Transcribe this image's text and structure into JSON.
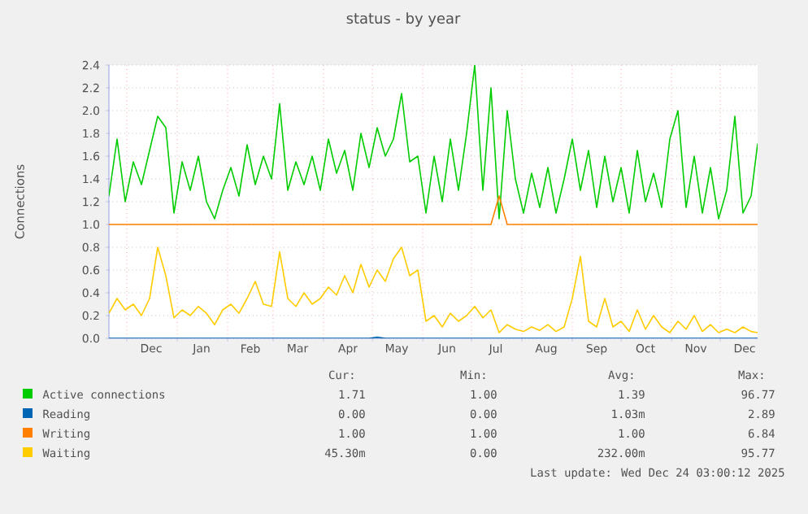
{
  "chart_data": {
    "type": "line",
    "title": "status - by year",
    "ylabel": "Connections",
    "x": [
      "2024-11-20",
      "2024-11-25",
      "2024-11-30",
      "2024-12-05",
      "2024-12-10",
      "2024-12-15",
      "2024-12-20",
      "2024-12-25",
      "2024-12-30",
      "2025-01-04",
      "2025-01-09",
      "2025-01-14",
      "2025-01-19",
      "2025-01-24",
      "2025-01-29",
      "2025-02-03",
      "2025-02-08",
      "2025-02-13",
      "2025-02-18",
      "2025-02-23",
      "2025-02-28",
      "2025-03-05",
      "2025-03-10",
      "2025-03-15",
      "2025-03-20",
      "2025-03-25",
      "2025-03-30",
      "2025-04-04",
      "2025-04-09",
      "2025-04-14",
      "2025-04-19",
      "2025-04-24",
      "2025-04-29",
      "2025-05-04",
      "2025-05-09",
      "2025-05-14",
      "2025-05-19",
      "2025-05-24",
      "2025-05-29",
      "2025-06-03",
      "2025-06-08",
      "2025-06-13",
      "2025-06-18",
      "2025-06-23",
      "2025-06-28",
      "2025-07-03",
      "2025-07-08",
      "2025-07-13",
      "2025-07-18",
      "2025-07-23",
      "2025-07-28",
      "2025-08-02",
      "2025-08-07",
      "2025-08-12",
      "2025-08-17",
      "2025-08-22",
      "2025-08-27",
      "2025-09-01",
      "2025-09-06",
      "2025-09-11",
      "2025-09-16",
      "2025-09-21",
      "2025-09-26",
      "2025-10-01",
      "2025-10-06",
      "2025-10-11",
      "2025-10-16",
      "2025-10-21",
      "2025-10-26",
      "2025-10-31",
      "2025-11-05",
      "2025-11-10",
      "2025-11-15",
      "2025-11-20",
      "2025-11-25",
      "2025-11-30",
      "2025-12-05",
      "2025-12-10",
      "2025-12-15",
      "2025-12-20",
      "2025-12-24"
    ],
    "series": [
      {
        "name": "Active connections",
        "color": "#00cc00",
        "values": [
          1.25,
          1.75,
          1.2,
          1.55,
          1.35,
          1.65,
          1.95,
          1.85,
          1.1,
          1.55,
          1.3,
          1.6,
          1.2,
          1.05,
          1.3,
          1.5,
          1.25,
          1.7,
          1.35,
          1.6,
          1.4,
          2.06,
          1.3,
          1.55,
          1.35,
          1.6,
          1.3,
          1.75,
          1.45,
          1.65,
          1.3,
          1.8,
          1.5,
          1.85,
          1.6,
          1.75,
          2.15,
          1.55,
          1.6,
          1.1,
          1.6,
          1.2,
          1.75,
          1.3,
          1.8,
          2.4,
          1.3,
          2.2,
          1.05,
          2.0,
          1.4,
          1.1,
          1.45,
          1.15,
          1.5,
          1.1,
          1.4,
          1.75,
          1.3,
          1.65,
          1.15,
          1.6,
          1.2,
          1.5,
          1.1,
          1.65,
          1.2,
          1.45,
          1.15,
          1.75,
          2.0,
          1.15,
          1.6,
          1.1,
          1.5,
          1.05,
          1.3,
          1.95,
          1.1,
          1.25,
          1.71
        ]
      },
      {
        "name": "Reading",
        "color": "#0066b3",
        "values": [
          0,
          0,
          0,
          0,
          0,
          0,
          0,
          0,
          0,
          0,
          0,
          0,
          0,
          0,
          0,
          0,
          0,
          0,
          0,
          0,
          0,
          0,
          0,
          0,
          0,
          0,
          0,
          0,
          0,
          0,
          0,
          0,
          0,
          0.01,
          0,
          0,
          0,
          0,
          0,
          0,
          0,
          0,
          0,
          0,
          0,
          0,
          0,
          0,
          0,
          0,
          0,
          0,
          0,
          0,
          0,
          0,
          0,
          0,
          0,
          0,
          0,
          0,
          0,
          0,
          0,
          0,
          0,
          0,
          0,
          0,
          0,
          0,
          0,
          0,
          0,
          0,
          0,
          0,
          0,
          0,
          0
        ]
      },
      {
        "name": "Writing",
        "color": "#ff8000",
        "values": [
          1,
          1,
          1,
          1,
          1,
          1,
          1,
          1,
          1,
          1,
          1,
          1,
          1,
          1,
          1,
          1,
          1,
          1,
          1,
          1,
          1,
          1,
          1,
          1,
          1,
          1,
          1,
          1,
          1,
          1,
          1,
          1,
          1,
          1,
          1,
          1,
          1,
          1,
          1,
          1,
          1,
          1,
          1,
          1,
          1,
          1,
          1,
          1,
          1.25,
          1,
          1,
          1,
          1,
          1,
          1,
          1,
          1,
          1,
          1,
          1,
          1,
          1,
          1,
          1,
          1,
          1,
          1,
          1,
          1,
          1,
          1,
          1,
          1,
          1,
          1,
          1,
          1,
          1,
          1,
          1,
          1
        ]
      },
      {
        "name": "Waiting",
        "color": "#ffcc00",
        "values": [
          0.22,
          0.35,
          0.25,
          0.3,
          0.2,
          0.35,
          0.8,
          0.55,
          0.18,
          0.25,
          0.2,
          0.28,
          0.22,
          0.12,
          0.25,
          0.3,
          0.22,
          0.35,
          0.5,
          0.3,
          0.28,
          0.76,
          0.35,
          0.28,
          0.4,
          0.3,
          0.35,
          0.45,
          0.38,
          0.55,
          0.4,
          0.65,
          0.45,
          0.6,
          0.5,
          0.7,
          0.8,
          0.55,
          0.6,
          0.15,
          0.2,
          0.1,
          0.22,
          0.15,
          0.2,
          0.28,
          0.18,
          0.25,
          0.05,
          0.12,
          0.08,
          0.06,
          0.1,
          0.07,
          0.12,
          0.06,
          0.1,
          0.35,
          0.72,
          0.15,
          0.1,
          0.35,
          0.1,
          0.15,
          0.06,
          0.25,
          0.08,
          0.2,
          0.1,
          0.05,
          0.15,
          0.08,
          0.2,
          0.06,
          0.12,
          0.05,
          0.08,
          0.05,
          0.1,
          0.06,
          0.05
        ]
      }
    ],
    "xlim": [
      "2024-11-20",
      "2025-12-24"
    ],
    "xticks": [
      {
        "value": "2024-12-01",
        "label": null
      },
      {
        "value": "2024-12-16",
        "label": "Dec"
      },
      {
        "value": "2025-01-01",
        "label": null
      },
      {
        "value": "2025-01-16",
        "label": "Jan"
      },
      {
        "value": "2025-02-01",
        "label": null
      },
      {
        "value": "2025-02-15",
        "label": "Feb"
      },
      {
        "value": "2025-03-01",
        "label": null
      },
      {
        "value": "2025-03-16",
        "label": "Mar"
      },
      {
        "value": "2025-04-01",
        "label": null
      },
      {
        "value": "2025-04-16",
        "label": "Apr"
      },
      {
        "value": "2025-05-01",
        "label": null
      },
      {
        "value": "2025-05-16",
        "label": "May"
      },
      {
        "value": "2025-06-01",
        "label": null
      },
      {
        "value": "2025-06-16",
        "label": "Jun"
      },
      {
        "value": "2025-07-01",
        "label": null
      },
      {
        "value": "2025-07-16",
        "label": "Jul"
      },
      {
        "value": "2025-08-01",
        "label": null
      },
      {
        "value": "2025-08-16",
        "label": "Aug"
      },
      {
        "value": "2025-09-01",
        "label": null
      },
      {
        "value": "2025-09-16",
        "label": "Sep"
      },
      {
        "value": "2025-10-01",
        "label": null
      },
      {
        "value": "2025-10-16",
        "label": "Oct"
      },
      {
        "value": "2025-11-01",
        "label": null
      },
      {
        "value": "2025-11-16",
        "label": "Nov"
      },
      {
        "value": "2025-12-01",
        "label": null
      },
      {
        "value": "2025-12-16",
        "label": "Dec"
      }
    ],
    "ylim": [
      0,
      2.4
    ],
    "yticks": [
      {
        "value": 0,
        "label": "0.0"
      },
      0.2,
      0.4,
      0.6,
      0.8,
      {
        "value": 1,
        "label": "1.0"
      },
      1.2,
      1.4,
      1.6,
      1.8,
      {
        "value": 2,
        "label": "2.0"
      },
      2.2,
      2.4
    ],
    "grid": true,
    "legend": "bottom",
    "marker": "none",
    "annotations": [
      "Cur:",
      "Min:",
      "Avg:",
      "Max:",
      "1.71",
      "1.00",
      "1.39",
      "96.77",
      "0.00",
      "0.00",
      "1.03m",
      "2.89",
      "1.00",
      "1.00",
      "1.00",
      "6.84",
      "45.30m",
      "0.00",
      "232.00m",
      "95.77",
      "Last update: Wed Dec 24 03:00:12 2025"
    ]
  }
}
